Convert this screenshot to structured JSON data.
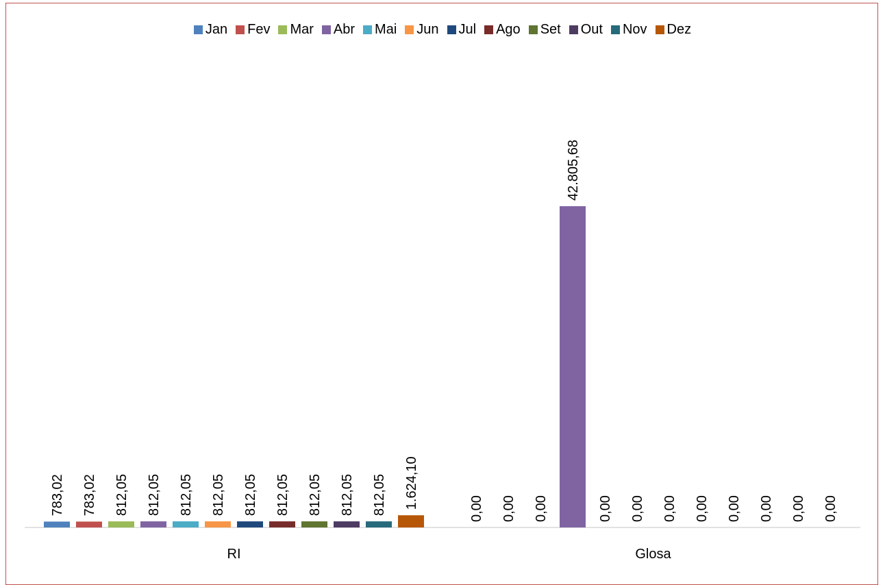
{
  "chart_data": {
    "type": "bar",
    "title": "",
    "xlabel": "",
    "ylabel": "",
    "categories": [
      "RI",
      "Glosa"
    ],
    "legend_position": "top",
    "grid": false,
    "series": [
      {
        "name": "Jan",
        "color": "#4f81bd",
        "values": [
          783.02,
          0.0
        ],
        "labels": [
          "783,02",
          "0,00"
        ]
      },
      {
        "name": "Fev",
        "color": "#c0504d",
        "values": [
          783.02,
          0.0
        ],
        "labels": [
          "783,02",
          "0,00"
        ]
      },
      {
        "name": "Mar",
        "color": "#9bbb59",
        "values": [
          812.05,
          0.0
        ],
        "labels": [
          "812,05",
          "0,00"
        ]
      },
      {
        "name": "Abr",
        "color": "#8064a2",
        "values": [
          812.05,
          42805.68
        ],
        "labels": [
          "812,05",
          "42.805,68"
        ]
      },
      {
        "name": "Mai",
        "color": "#4bacc6",
        "values": [
          812.05,
          0.0
        ],
        "labels": [
          "812,05",
          "0,00"
        ]
      },
      {
        "name": "Jun",
        "color": "#f79646",
        "values": [
          812.05,
          0.0
        ],
        "labels": [
          "812,05",
          "0,00"
        ]
      },
      {
        "name": "Jul",
        "color": "#1f497d",
        "values": [
          812.05,
          0.0
        ],
        "labels": [
          "812,05",
          "0,00"
        ]
      },
      {
        "name": "Ago",
        "color": "#772c2a",
        "values": [
          812.05,
          0.0
        ],
        "labels": [
          "812,05",
          "0,00"
        ]
      },
      {
        "name": "Set",
        "color": "#5f7530",
        "values": [
          812.05,
          0.0
        ],
        "labels": [
          "812,05",
          "0,00"
        ]
      },
      {
        "name": "Out",
        "color": "#4d3b62",
        "values": [
          812.05,
          0.0
        ],
        "labels": [
          "812,05",
          "0,00"
        ]
      },
      {
        "name": "Nov",
        "color": "#276a7c",
        "values": [
          812.05,
          0.0
        ],
        "labels": [
          "812,05",
          "0,00"
        ]
      },
      {
        "name": "Dez",
        "color": "#b65708",
        "values": [
          1624.1,
          0.0
        ],
        "labels": [
          "1.624,10",
          "0,00"
        ]
      }
    ],
    "ylim": [
      0,
      50000
    ]
  }
}
